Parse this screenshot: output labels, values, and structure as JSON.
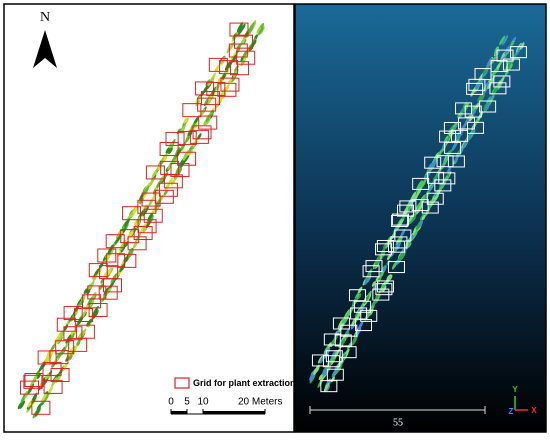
{
  "north_label": "N",
  "legend": {
    "label": "Grid for plant extraction"
  },
  "scale_bar": {
    "labels": [
      "0",
      "5",
      "10",
      "20 Meters"
    ]
  },
  "point_cloud_view": {
    "scale_label": "55",
    "axes": {
      "y": "Y",
      "z": "Z",
      "x": "X"
    }
  }
}
